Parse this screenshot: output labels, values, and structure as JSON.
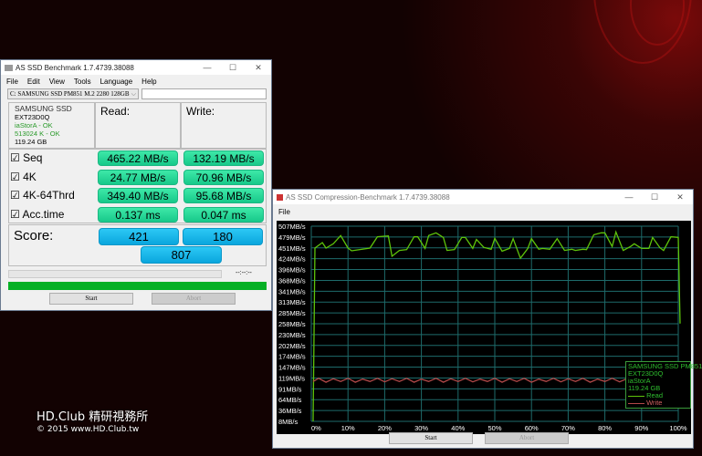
{
  "main_window": {
    "title": "AS SSD Benchmark 1.7.4739.38088",
    "menu": [
      "File",
      "Edit",
      "View",
      "Tools",
      "Language",
      "Help"
    ],
    "drive_select": "C: SAMSUNG SSD PM851 M.2 2280 128GB",
    "drive_info": {
      "model": "SAMSUNG SSD",
      "firmware": "EXT23D0Q",
      "driver": "iaStorA - OK",
      "alignment": "513024 K - OK",
      "size": "119.24 GB"
    },
    "read_header": "Read:",
    "write_header": "Write:",
    "rows": [
      {
        "label": "Seq",
        "checked": true,
        "read": "465.22 MB/s",
        "write": "132.19 MB/s"
      },
      {
        "label": "4K",
        "checked": true,
        "read": "24.77 MB/s",
        "write": "70.96 MB/s"
      },
      {
        "label": "4K-64Thrd",
        "checked": true,
        "read": "349.40 MB/s",
        "write": "95.68 MB/s"
      },
      {
        "label": "Acc.time",
        "checked": true,
        "read": "0.137 ms",
        "write": "0.047 ms"
      }
    ],
    "score_label": "Score:",
    "score_read": "421",
    "score_write": "180",
    "score_total": "807",
    "time_text": "--:--:--",
    "progress": 100,
    "start_label": "Start",
    "abort_label": "Abort"
  },
  "compression_window": {
    "title": "AS SSD Compression-Benchmark 1.7.4739.38088",
    "menu": [
      "File"
    ],
    "start_label": "Start",
    "abort_label": "Abort",
    "legend": {
      "model": "SAMSUNG SSD PM851",
      "firmware": "EXT23D0Q",
      "driver": "iaStorA",
      "size": "119.24 GB",
      "read": "Read",
      "write": "Write"
    }
  },
  "chart_data": {
    "type": "line",
    "y_ticks": [
      "507MB/s",
      "479MB/s",
      "451MB/s",
      "424MB/s",
      "396MB/s",
      "368MB/s",
      "341MB/s",
      "313MB/s",
      "285MB/s",
      "258MB/s",
      "230MB/s",
      "202MB/s",
      "174MB/s",
      "147MB/s",
      "119MB/s",
      "91MB/s",
      "64MB/s",
      "36MB/s",
      "8MB/s"
    ],
    "x_ticks": [
      "0%",
      "10%",
      "20%",
      "30%",
      "40%",
      "50%",
      "60%",
      "70%",
      "80%",
      "90%",
      "100%"
    ],
    "ylim": [
      8,
      507
    ],
    "xlim": [
      0,
      100
    ],
    "grid": true,
    "legend": "bottom-right",
    "colors": {
      "read": "#5ec40a",
      "write": "#b04848",
      "grid": "#1e6b6b",
      "background": "#000000"
    },
    "series": [
      {
        "name": "Read",
        "x": [
          0.5,
          1,
          3,
          4,
          6,
          8,
          10,
          11,
          16,
          18,
          21,
          22,
          24,
          26,
          28,
          29,
          31,
          32,
          34,
          36,
          37,
          39,
          41,
          42,
          44,
          45,
          47,
          49,
          50,
          52,
          54,
          55,
          57,
          59,
          60,
          62,
          63,
          65,
          67,
          69,
          71,
          72,
          74,
          75,
          77,
          79,
          80,
          82,
          83,
          85,
          87,
          88,
          90,
          92,
          93,
          95,
          96,
          98,
          100,
          100.5
        ],
        "y": [
          8,
          451,
          465,
          451,
          462,
          483,
          451,
          444,
          451,
          480,
          482,
          430,
          445,
          447,
          480,
          480,
          450,
          483,
          490,
          478,
          445,
          447,
          478,
          478,
          450,
          473,
          453,
          448,
          476,
          443,
          450,
          475,
          425,
          450,
          475,
          448,
          450,
          448,
          475,
          445,
          448,
          445,
          448,
          447,
          485,
          490,
          490,
          455,
          492,
          445,
          455,
          462,
          450,
          450,
          478,
          452,
          445,
          480,
          478,
          258
        ]
      },
      {
        "name": "Write",
        "x": [
          0.5,
          2,
          4,
          6,
          8,
          10,
          12,
          14,
          16,
          18,
          20,
          22,
          24,
          26,
          28,
          30,
          32,
          34,
          36,
          38,
          40,
          42,
          44,
          46,
          48,
          50,
          52,
          54,
          56,
          58,
          60,
          62,
          64,
          66,
          68,
          70,
          72,
          74,
          76,
          78,
          80,
          82,
          84,
          86,
          88,
          90,
          92,
          94,
          96,
          98,
          100
        ],
        "y": [
          110,
          118,
          108,
          117,
          110,
          118,
          108,
          116,
          110,
          118,
          109,
          117,
          110,
          118,
          108,
          116,
          110,
          118,
          108,
          117,
          110,
          118,
          109,
          116,
          110,
          118,
          108,
          117,
          110,
          118,
          108,
          116,
          110,
          118,
          109,
          117,
          110,
          118,
          108,
          116,
          110,
          118,
          109,
          117,
          110,
          118,
          108,
          117,
          110,
          116,
          112
        ]
      }
    ]
  },
  "watermark": {
    "line1": "HD.Club 精研視務所",
    "line2": "© 2015  www.HD.Club.tw"
  }
}
